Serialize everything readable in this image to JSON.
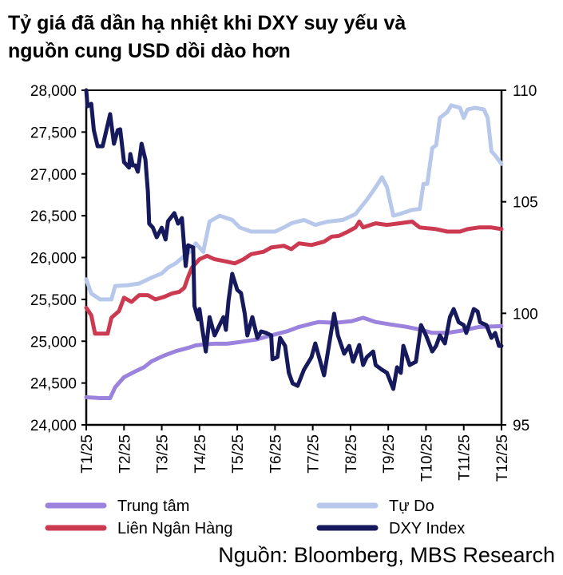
{
  "title_lines": [
    "Tỷ giá đã dần hạ nhiệt khi DXY suy yếu và",
    "nguồn cung USD dồi dào hơn"
  ],
  "source": "Nguồn: Bloomberg, MBS Research",
  "chart_data": {
    "type": "line",
    "x_ticks": [
      "T1/25",
      "T2/25",
      "T3/25",
      "T4/25",
      "T5/25",
      "T6/25",
      "T7/25",
      "T8/25",
      "T9/25",
      "T10/25",
      "T11/25",
      "T12/25"
    ],
    "x_tick_dates": [
      "2025-01-01",
      "2025-02-01",
      "2025-03-01",
      "2025-04-01",
      "2025-05-01",
      "2025-06-01",
      "2025-07-01",
      "2025-08-01",
      "2025-09-01",
      "2025-10-01",
      "2025-11-01",
      "2025-12-01"
    ],
    "y_left": {
      "range": [
        24000,
        28000
      ],
      "ticks": [
        24000,
        24500,
        25000,
        25500,
        26000,
        26500,
        27000,
        27500,
        28000
      ],
      "tick_labels": [
        "24,000",
        "24,500",
        "25,000",
        "25,500",
        "26,000",
        "26,500",
        "27,000",
        "27,500",
        "28,000"
      ]
    },
    "y_right": {
      "range": [
        95,
        110
      ],
      "ticks": [
        95,
        100,
        105,
        110
      ],
      "tick_labels": [
        "95",
        "100",
        "105",
        "110"
      ]
    },
    "grid": false,
    "legend_placement": "bottom",
    "series": [
      {
        "name": "Trung tâm",
        "axis": "left",
        "color": "#9b82dc",
        "points": [
          [
            "2025-01-01",
            24330
          ],
          [
            "2025-01-12",
            24320
          ],
          [
            "2025-01-20",
            24320
          ],
          [
            "2025-01-24",
            24450
          ],
          [
            "2025-02-01",
            24570
          ],
          [
            "2025-02-10",
            24640
          ],
          [
            "2025-02-17",
            24690
          ],
          [
            "2025-02-23",
            24760
          ],
          [
            "2025-03-03",
            24830
          ],
          [
            "2025-03-12",
            24880
          ],
          [
            "2025-03-22",
            24920
          ],
          [
            "2025-03-28",
            24950
          ],
          [
            "2025-04-04",
            24960
          ],
          [
            "2025-04-13",
            24970
          ],
          [
            "2025-04-23",
            24970
          ],
          [
            "2025-05-03",
            24990
          ],
          [
            "2025-05-16",
            25020
          ],
          [
            "2025-05-28",
            25070
          ],
          [
            "2025-06-11",
            25120
          ],
          [
            "2025-06-20",
            25170
          ],
          [
            "2025-06-30",
            25210
          ],
          [
            "2025-07-06",
            25230
          ],
          [
            "2025-07-19",
            25220
          ],
          [
            "2025-08-02",
            25240
          ],
          [
            "2025-08-11",
            25280
          ],
          [
            "2025-08-21",
            25230
          ],
          [
            "2025-09-03",
            25200
          ],
          [
            "2025-09-16",
            25170
          ],
          [
            "2025-09-26",
            25140
          ],
          [
            "2025-10-06",
            25100
          ],
          [
            "2025-10-18",
            25100
          ],
          [
            "2025-11-01",
            25130
          ],
          [
            "2025-11-13",
            25170
          ],
          [
            "2025-12-01",
            25180
          ]
        ]
      },
      {
        "name": "Tự Do",
        "axis": "left",
        "color": "#b7c8ea",
        "points": [
          [
            "2025-01-01",
            25740
          ],
          [
            "2025-01-05",
            25570
          ],
          [
            "2025-01-12",
            25500
          ],
          [
            "2025-01-21",
            25500
          ],
          [
            "2025-01-24",
            25660
          ],
          [
            "2025-02-04",
            25670
          ],
          [
            "2025-02-13",
            25690
          ],
          [
            "2025-02-23",
            25760
          ],
          [
            "2025-03-01",
            25810
          ],
          [
            "2025-03-06",
            25880
          ],
          [
            "2025-03-12",
            25930
          ],
          [
            "2025-03-19",
            26020
          ],
          [
            "2025-03-25",
            26090
          ],
          [
            "2025-03-28",
            26170
          ],
          [
            "2025-04-04",
            26070
          ],
          [
            "2025-04-09",
            26430
          ],
          [
            "2025-04-17",
            26500
          ],
          [
            "2025-04-27",
            26450
          ],
          [
            "2025-05-03",
            26360
          ],
          [
            "2025-05-12",
            26310
          ],
          [
            "2025-05-22",
            26310
          ],
          [
            "2025-06-01",
            26310
          ],
          [
            "2025-06-08",
            26360
          ],
          [
            "2025-06-14",
            26410
          ],
          [
            "2025-06-24",
            26450
          ],
          [
            "2025-07-03",
            26390
          ],
          [
            "2025-07-13",
            26430
          ],
          [
            "2025-07-25",
            26450
          ],
          [
            "2025-08-05",
            26520
          ],
          [
            "2025-08-14",
            26690
          ],
          [
            "2025-08-21",
            26840
          ],
          [
            "2025-08-26",
            26960
          ],
          [
            "2025-08-30",
            26840
          ],
          [
            "2025-09-05",
            26500
          ],
          [
            "2025-09-10",
            26520
          ],
          [
            "2025-09-20",
            26570
          ],
          [
            "2025-09-26",
            26580
          ],
          [
            "2025-09-29",
            26880
          ],
          [
            "2025-10-02",
            26880
          ],
          [
            "2025-10-06",
            27310
          ],
          [
            "2025-10-09",
            27340
          ],
          [
            "2025-10-12",
            27670
          ],
          [
            "2025-10-18",
            27740
          ],
          [
            "2025-10-21",
            27820
          ],
          [
            "2025-10-28",
            27790
          ],
          [
            "2025-11-01",
            27670
          ],
          [
            "2025-11-04",
            27770
          ],
          [
            "2025-11-10",
            27790
          ],
          [
            "2025-11-17",
            27770
          ],
          [
            "2025-11-20",
            27670
          ],
          [
            "2025-11-23",
            27270
          ],
          [
            "2025-11-26",
            27220
          ],
          [
            "2025-12-01",
            27120
          ]
        ]
      },
      {
        "name": "Liên Ngân Hàng",
        "axis": "left",
        "color": "#cc3a52",
        "points": [
          [
            "2025-01-01",
            25400
          ],
          [
            "2025-01-05",
            25310
          ],
          [
            "2025-01-08",
            25090
          ],
          [
            "2025-01-18",
            25090
          ],
          [
            "2025-01-21",
            25280
          ],
          [
            "2025-01-27",
            25360
          ],
          [
            "2025-02-01",
            25520
          ],
          [
            "2025-02-07",
            25470
          ],
          [
            "2025-02-13",
            25550
          ],
          [
            "2025-02-20",
            25550
          ],
          [
            "2025-02-26",
            25500
          ],
          [
            "2025-03-03",
            25530
          ],
          [
            "2025-03-09",
            25570
          ],
          [
            "2025-03-15",
            25590
          ],
          [
            "2025-03-19",
            25640
          ],
          [
            "2025-03-22",
            25770
          ],
          [
            "2025-03-25",
            25880
          ],
          [
            "2025-04-01",
            25980
          ],
          [
            "2025-04-07",
            26020
          ],
          [
            "2025-04-13",
            25980
          ],
          [
            "2025-04-23",
            25950
          ],
          [
            "2025-04-29",
            25930
          ],
          [
            "2025-05-06",
            25980
          ],
          [
            "2025-05-12",
            26040
          ],
          [
            "2025-05-22",
            26070
          ],
          [
            "2025-05-28",
            26120
          ],
          [
            "2025-06-08",
            26140
          ],
          [
            "2025-06-14",
            26100
          ],
          [
            "2025-06-20",
            26170
          ],
          [
            "2025-06-30",
            26150
          ],
          [
            "2025-07-10",
            26190
          ],
          [
            "2025-07-16",
            26250
          ],
          [
            "2025-07-22",
            26260
          ],
          [
            "2025-07-29",
            26310
          ],
          [
            "2025-08-05",
            26360
          ],
          [
            "2025-08-08",
            26430
          ],
          [
            "2025-08-11",
            26360
          ],
          [
            "2025-08-21",
            26410
          ],
          [
            "2025-08-30",
            26390
          ],
          [
            "2025-09-10",
            26410
          ],
          [
            "2025-09-20",
            26430
          ],
          [
            "2025-09-26",
            26360
          ],
          [
            "2025-10-09",
            26340
          ],
          [
            "2025-10-18",
            26310
          ],
          [
            "2025-10-28",
            26310
          ],
          [
            "2025-11-04",
            26340
          ],
          [
            "2025-11-13",
            26360
          ],
          [
            "2025-11-23",
            26360
          ],
          [
            "2025-12-01",
            26340
          ]
        ]
      },
      {
        "name": "DXY Index",
        "axis": "right",
        "color": "#161a5c",
        "points": [
          [
            "2025-01-01",
            110.0
          ],
          [
            "2025-01-02",
            109.28
          ],
          [
            "2025-01-05",
            109.39
          ],
          [
            "2025-01-07",
            108.21
          ],
          [
            "2025-01-10",
            107.49
          ],
          [
            "2025-01-14",
            107.49
          ],
          [
            "2025-01-16",
            107.96
          ],
          [
            "2025-01-20",
            108.93
          ],
          [
            "2025-01-23",
            107.6
          ],
          [
            "2025-01-26",
            108.21
          ],
          [
            "2025-01-28",
            108.25
          ],
          [
            "2025-02-01",
            106.78
          ],
          [
            "2025-02-05",
            106.53
          ],
          [
            "2025-02-06",
            107.14
          ],
          [
            "2025-02-08",
            106.63
          ],
          [
            "2025-02-10",
            106.63
          ],
          [
            "2025-02-12",
            106.35
          ],
          [
            "2025-02-15",
            107.6
          ],
          [
            "2025-02-18",
            106.89
          ],
          [
            "2025-02-20",
            105.45
          ],
          [
            "2025-02-21",
            104.02
          ],
          [
            "2025-02-24",
            103.84
          ],
          [
            "2025-02-27",
            103.41
          ],
          [
            "2025-03-01",
            103.84
          ],
          [
            "2025-03-04",
            103.31
          ],
          [
            "2025-03-06",
            104.13
          ],
          [
            "2025-03-11",
            104.49
          ],
          [
            "2025-03-14",
            104.02
          ],
          [
            "2025-03-17",
            104.27
          ],
          [
            "2025-03-20",
            102.12
          ],
          [
            "2025-03-22",
            103.05
          ],
          [
            "2025-03-26",
            102.95
          ],
          [
            "2025-03-27",
            100.33
          ],
          [
            "2025-03-30",
            99.73
          ],
          [
            "2025-04-01",
            100.19
          ],
          [
            "2025-04-03",
            99.37
          ],
          [
            "2025-04-06",
            98.29
          ],
          [
            "2025-04-09",
            99.83
          ],
          [
            "2025-04-13",
            99.01
          ],
          [
            "2025-04-20",
            99.83
          ],
          [
            "2025-04-22",
            99.26
          ],
          [
            "2025-04-24",
            100.55
          ],
          [
            "2025-04-27",
            101.77
          ],
          [
            "2025-05-01",
            101.05
          ],
          [
            "2025-05-04",
            100.91
          ],
          [
            "2025-05-07",
            99.98
          ],
          [
            "2025-05-09",
            99.01
          ],
          [
            "2025-05-13",
            99.83
          ],
          [
            "2025-05-17",
            98.9
          ],
          [
            "2025-05-20",
            99.19
          ],
          [
            "2025-05-24",
            99.12
          ],
          [
            "2025-05-28",
            99.01
          ],
          [
            "2025-05-29",
            97.94
          ],
          [
            "2025-06-03",
            98.04
          ],
          [
            "2025-06-05",
            98.9
          ],
          [
            "2025-06-09",
            98.54
          ],
          [
            "2025-06-12",
            97.33
          ],
          [
            "2025-06-15",
            96.86
          ],
          [
            "2025-06-19",
            96.75
          ],
          [
            "2025-06-24",
            97.47
          ],
          [
            "2025-06-30",
            98.04
          ],
          [
            "2025-07-03",
            98.65
          ],
          [
            "2025-07-10",
            97.22
          ],
          [
            "2025-07-18",
            99.98
          ],
          [
            "2025-07-21",
            99.01
          ],
          [
            "2025-07-26",
            98.19
          ],
          [
            "2025-07-30",
            98.54
          ],
          [
            "2025-08-03",
            97.83
          ],
          [
            "2025-08-08",
            98.58
          ],
          [
            "2025-08-11",
            97.68
          ],
          [
            "2025-08-14",
            98.04
          ],
          [
            "2025-08-19",
            98.29
          ],
          [
            "2025-08-21",
            97.68
          ],
          [
            "2025-08-26",
            97.47
          ],
          [
            "2025-08-30",
            97.33
          ],
          [
            "2025-09-05",
            96.61
          ],
          [
            "2025-09-08",
            97.58
          ],
          [
            "2025-09-11",
            97.33
          ],
          [
            "2025-09-13",
            98.54
          ],
          [
            "2025-09-18",
            97.68
          ],
          [
            "2025-09-23",
            97.83
          ],
          [
            "2025-09-27",
            99.47
          ],
          [
            "2025-10-01",
            99.01
          ],
          [
            "2025-10-06",
            98.29
          ],
          [
            "2025-10-09",
            98.54
          ],
          [
            "2025-10-12",
            99.01
          ],
          [
            "2025-10-16",
            98.65
          ],
          [
            "2025-10-20",
            99.83
          ],
          [
            "2025-10-23",
            100.19
          ],
          [
            "2025-10-27",
            99.6
          ],
          [
            "2025-11-01",
            99.47
          ],
          [
            "2025-11-03",
            99.12
          ],
          [
            "2025-11-09",
            100.19
          ],
          [
            "2025-11-12",
            100.08
          ],
          [
            "2025-11-14",
            99.6
          ],
          [
            "2025-11-19",
            99.47
          ],
          [
            "2025-11-23",
            98.9
          ],
          [
            "2025-11-26",
            99.12
          ],
          [
            "2025-11-29",
            98.54
          ],
          [
            "2025-12-01",
            98.54
          ]
        ]
      }
    ]
  }
}
